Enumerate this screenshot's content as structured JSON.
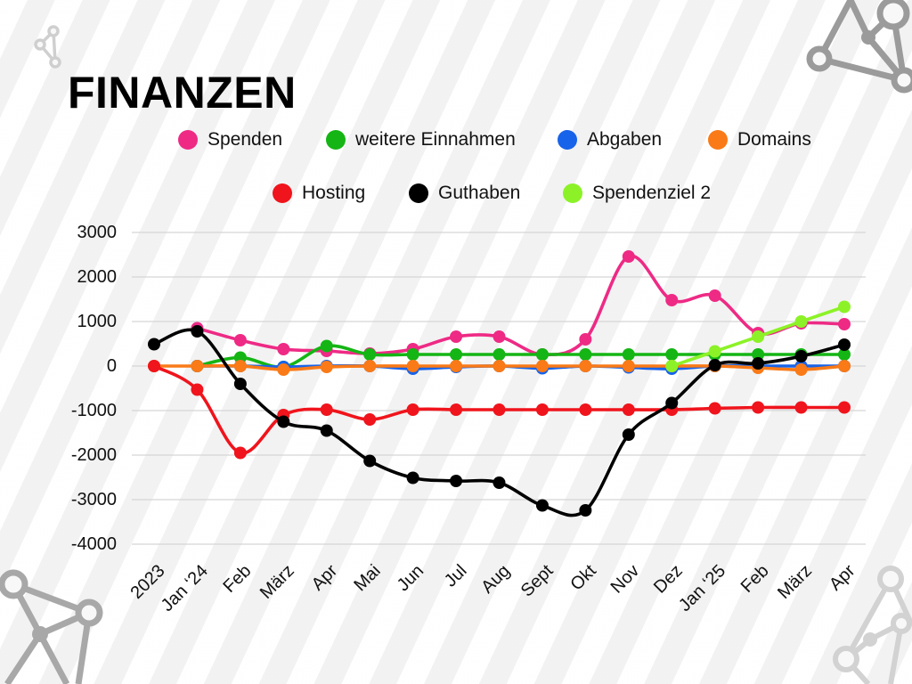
{
  "icons": {
    "decoration": "network-icon"
  },
  "chart_data": {
    "type": "line",
    "title": "FINANZEN",
    "categories": [
      "2023",
      "Jan ‘24",
      "Feb",
      "März",
      "Apr",
      "Mai",
      "Jun",
      "Jul",
      "Aug",
      "Sept",
      "Okt",
      "Nov",
      "Dez",
      "Jan ‘25",
      "Feb",
      "März",
      "Apr"
    ],
    "ylim": [
      -4000,
      3000
    ],
    "yticks": [
      3000,
      2000,
      1000,
      0,
      -1000,
      -2000,
      -3000,
      -4000
    ],
    "grid": true,
    "legend_position": "top",
    "smooth": true,
    "series": [
      {
        "name": "Spenden",
        "color": "#ee2a85",
        "values": [
          null,
          850,
          580,
          380,
          340,
          280,
          380,
          660,
          660,
          260,
          600,
          2460,
          1480,
          1580,
          740,
          960,
          940
        ]
      },
      {
        "name": "weitere Einnahmen",
        "color": "#14b514",
        "values": [
          null,
          0,
          190,
          -20,
          450,
          260,
          260,
          260,
          260,
          260,
          260,
          260,
          260,
          260,
          260,
          260,
          260
        ]
      },
      {
        "name": "Abgaben",
        "color": "#1763ea",
        "values": [
          null,
          0,
          0,
          -20,
          0,
          0,
          -60,
          -20,
          0,
          -50,
          0,
          -30,
          -60,
          0,
          0,
          0,
          0
        ]
      },
      {
        "name": "Domains",
        "color": "#f97a17",
        "values": [
          0,
          0,
          0,
          -80,
          -20,
          0,
          0,
          0,
          0,
          0,
          0,
          0,
          0,
          0,
          -40,
          -80,
          0
        ]
      },
      {
        "name": "Hosting",
        "color": "#f0141c",
        "values": [
          0,
          -530,
          -1950,
          -1100,
          -980,
          -1200,
          -980,
          -980,
          -980,
          -980,
          -980,
          -980,
          -980,
          -950,
          -930,
          -930,
          -930
        ]
      },
      {
        "name": "Guthaben",
        "color": "#000000",
        "values": [
          490,
          780,
          -400,
          -1250,
          -1450,
          -2130,
          -2510,
          -2580,
          -2620,
          -3130,
          -3240,
          -1540,
          -830,
          20,
          60,
          220,
          480
        ]
      },
      {
        "name": "Spendenziel 2",
        "color": "#8cf227",
        "values": [
          null,
          null,
          null,
          null,
          null,
          null,
          null,
          null,
          null,
          null,
          null,
          null,
          0,
          330,
          660,
          1000,
          1330
        ]
      }
    ]
  }
}
